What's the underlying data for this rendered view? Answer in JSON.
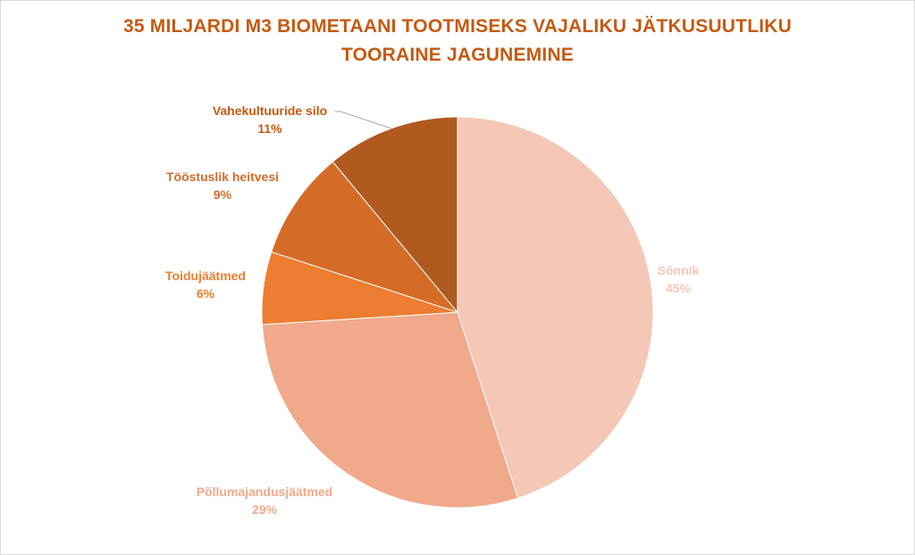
{
  "chart_data": {
    "type": "pie",
    "title_lines": [
      "35 MILJARDI M3 BIOMETAANI TOOTMISEKS VAJALIKU JÄTKUSUUTLIKU",
      "TOORAINE JAGUNEMINE"
    ],
    "slices": [
      {
        "name": "Sõnnik",
        "value": 45,
        "percent_label": "45%",
        "color": "#f4c7b6"
      },
      {
        "name": "Põllumajandusjäätmed",
        "value": 29,
        "percent_label": "29%",
        "color": "#f0a98a"
      },
      {
        "name": "Toidujäätmed",
        "value": 6,
        "percent_label": "6%",
        "color": "#ed7d31"
      },
      {
        "name": "Tööstuslik heitvesi",
        "value": 9,
        "percent_label": "9%",
        "color": "#d46c28"
      },
      {
        "name": "Vahekultuuride silo",
        "value": 11,
        "percent_label": "11%",
        "color": "#b05a20"
      }
    ],
    "title_color": "#c55a11",
    "start_angle": "12 o'clock",
    "direction": "clockwise"
  }
}
